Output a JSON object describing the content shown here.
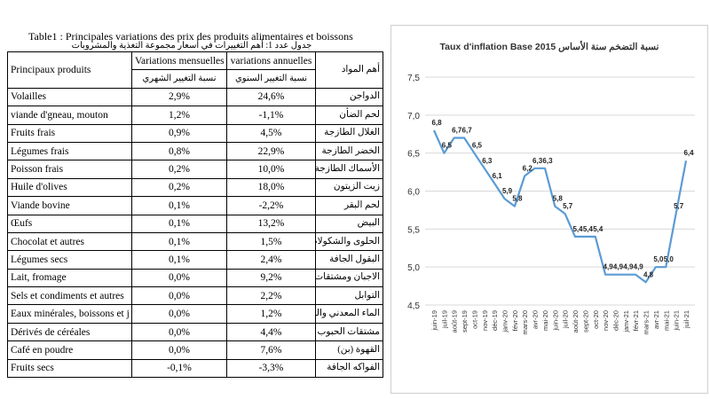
{
  "table": {
    "title": "Table1 : Principales variations des prix des produits alimentaires et boissons",
    "subtitle": "جدول عدد 1: أهم التغييرات في أسعار مجموعة التغذية والمشروبات",
    "headers": {
      "product": "Principaux produits",
      "monthly": "Variations mensuelles",
      "annual": "variations annuelles",
      "product_ar": "أهم المواد",
      "monthly_ar": "نسبة التغيير الشهري",
      "annual_ar": "نسبة التغيير السنوي"
    },
    "rows": [
      {
        "product": "Volailles",
        "monthly": "2,9%",
        "annual": "24,6%",
        "ar": "الدواجن"
      },
      {
        "product": "viande d'gneau, mouton",
        "monthly": "1,2%",
        "annual": "-1,1%",
        "ar": "لحم الضأن"
      },
      {
        "product": "Fruits frais",
        "monthly": "0,9%",
        "annual": "4,5%",
        "ar": "الغلال الطازجة"
      },
      {
        "product": "Légumes frais",
        "monthly": "0,8%",
        "annual": "22,9%",
        "ar": "الخضر الطازجة"
      },
      {
        "product": "Poisson frais",
        "monthly": "0,2%",
        "annual": "10,0%",
        "ar": "الأسماك الطازجة"
      },
      {
        "product": "Huile d'olives",
        "monthly": "0,2%",
        "annual": "18,0%",
        "ar": "زيت الزيتون"
      },
      {
        "product": "Viande bovine",
        "monthly": "0,1%",
        "annual": "-2,2%",
        "ar": "لحم البقر"
      },
      {
        "product": "Œufs",
        "monthly": "0,1%",
        "annual": "13,2%",
        "ar": "البيض"
      },
      {
        "product": "Chocolat et autres",
        "monthly": "0,1%",
        "annual": "1,5%",
        "ar": "الحلوى والشكولاطة"
      },
      {
        "product": "Légumes secs",
        "monthly": "0,1%",
        "annual": "2,4%",
        "ar": "البقول الجافة"
      },
      {
        "product": "Lait, fromage",
        "monthly": "0,0%",
        "annual": "9,2%",
        "ar": "الاجبان ومشتقات"
      },
      {
        "product": "Sels et condiments et autres",
        "monthly": "0,0%",
        "annual": "2,2%",
        "ar": "التوابل"
      },
      {
        "product": "Eaux minérales, boissons et j",
        "monthly": "0,0%",
        "annual": "1,2%",
        "ar": "الماء المعدني والمشـ"
      },
      {
        "product": "Dérivés de céréales",
        "monthly": "0,0%",
        "annual": "4,4%",
        "ar": "مشتقات الحبوب"
      },
      {
        "product": "Café en poudre",
        "monthly": "0,0%",
        "annual": "7,6%",
        "ar": "القهوة (بن)"
      },
      {
        "product": "Fruits secs",
        "monthly": "-0,1%",
        "annual": "-3,3%",
        "ar": "الفواكه الجافة"
      }
    ]
  },
  "chart_data": {
    "type": "line",
    "title": "Taux d'inflation Base 2015 نسبة التضخم سنة الأساس",
    "xlabel": "",
    "ylabel": "",
    "ylim": [
      4.5,
      7.5
    ],
    "yticks": [
      "7,5",
      "7,0",
      "6,5",
      "6,0",
      "5,5",
      "5,0",
      "4,5"
    ],
    "grid": true,
    "line_color": "#5b9bd5",
    "x": [
      "juin-19",
      "juil-19",
      "août-19",
      "sept-19",
      "oct-19",
      "nov-19",
      "déc-19",
      "janv-20",
      "févr-20",
      "mars-20",
      "avr-20",
      "mai-20",
      "juin-20",
      "juil-20",
      "août-20",
      "sept-20",
      "oct-20",
      "nov-20",
      "déc-20",
      "janv-21",
      "févr-21",
      "mars-21",
      "avr-21",
      "mai-21",
      "juin-21",
      "juil-21"
    ],
    "series": [
      {
        "values": [
          6.8,
          6.5,
          6.7,
          6.7,
          6.5,
          6.3,
          6.1,
          5.9,
          5.8,
          6.2,
          6.3,
          6.3,
          5.8,
          5.7,
          5.4,
          5.4,
          5.4,
          4.9,
          4.9,
          4.9,
          4.9,
          4.8,
          5.0,
          5.0,
          5.7,
          6.4
        ]
      }
    ],
    "labels": [
      "6,8",
      "6,5",
      "6,7",
      "6,7",
      "6,5",
      "6,3",
      "6,1",
      "5,9",
      "5,8",
      "6,2",
      "6,3",
      "6,3",
      "5,8",
      "5,7",
      "5,4",
      "5,4",
      "5,4",
      "4,9",
      "4,9",
      "4,9",
      "4,9",
      "4,8",
      "5,0",
      "5,0",
      "5,7",
      "6,4"
    ]
  }
}
